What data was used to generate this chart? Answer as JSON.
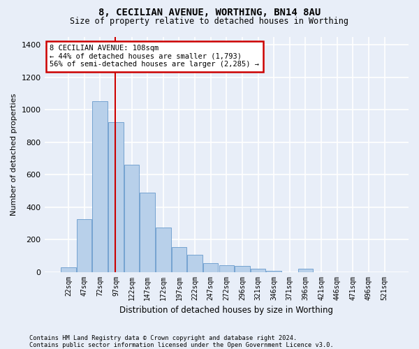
{
  "title": "8, CECILIAN AVENUE, WORTHING, BN14 8AU",
  "subtitle": "Size of property relative to detached houses in Worthing",
  "xlabel": "Distribution of detached houses by size in Worthing",
  "ylabel": "Number of detached properties",
  "footer_line1": "Contains HM Land Registry data © Crown copyright and database right 2024.",
  "footer_line2": "Contains public sector information licensed under the Open Government Licence v3.0.",
  "categories": [
    "22sqm",
    "47sqm",
    "72sqm",
    "97sqm",
    "122sqm",
    "147sqm",
    "172sqm",
    "197sqm",
    "222sqm",
    "247sqm",
    "272sqm",
    "296sqm",
    "321sqm",
    "346sqm",
    "371sqm",
    "396sqm",
    "421sqm",
    "446sqm",
    "471sqm",
    "496sqm",
    "521sqm"
  ],
  "bar_values": [
    30,
    325,
    1050,
    925,
    660,
    490,
    275,
    155,
    105,
    55,
    40,
    35,
    20,
    5,
    0,
    20,
    0,
    0,
    0,
    0,
    0
  ],
  "bar_color": "#b8d0ea",
  "bar_edge_color": "#6699cc",
  "background_color": "#e8eef8",
  "grid_color": "#ffffff",
  "ylim": [
    0,
    1450
  ],
  "yticks": [
    0,
    200,
    400,
    600,
    800,
    1000,
    1200,
    1400
  ],
  "annotation_title": "8 CECILIAN AVENUE: 108sqm",
  "annotation_line1": "← 44% of detached houses are smaller (1,793)",
  "annotation_line2": "56% of semi-detached houses are larger (2,285) →",
  "annotation_box_color": "#ffffff",
  "annotation_border_color": "#cc0000",
  "red_line_color": "#cc0000",
  "red_line_xindex": 3.44
}
